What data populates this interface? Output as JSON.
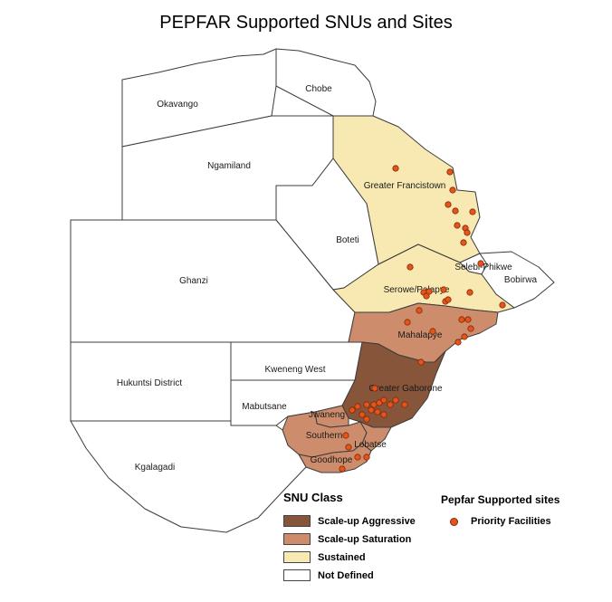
{
  "title": "PEPFAR Supported SNUs and Sites",
  "colors": {
    "scale_up_aggressive": "#86553a",
    "scale_up_saturation": "#cd8d6c",
    "sustained": "#f8e9b2",
    "not_defined": "#ffffff"
  },
  "regions": {
    "okavango": "Okavango",
    "chobe": "Chobe",
    "ngamiland": "Ngamiland",
    "greater_francistown": "Greater Francistown",
    "boteti": "Boteti",
    "ghanzi": "Ghanzi",
    "selebi_phikwe": "Selebi-Phikwe",
    "bobirwa": "Bobirwa",
    "serowe_palapye": "Serowe/Palapye",
    "mahalapye": "Mahalapye",
    "greater_gaborone": "Greater Gaborone",
    "kweneng_west": "Kweneng West",
    "hukuntsi": "Hukuntsi District",
    "mabutsane": "Mabutsane",
    "jwaneng": "Jwaneng",
    "southern": "Southern",
    "lobatse": "Lobatse",
    "goodhope": "Goodhope",
    "kgalagadi": "Kgalagadi"
  },
  "legend": {
    "snu_title": "SNU Class",
    "items": [
      {
        "label": "Scale-up Aggressive",
        "color_key": "scale_up_aggressive"
      },
      {
        "label": "Scale-up Saturation",
        "color_key": "scale_up_saturation"
      },
      {
        "label": "Sustained",
        "color_key": "sustained"
      },
      {
        "label": "Not Defined",
        "color_key": "not_defined"
      }
    ],
    "sites_title": "Pepfar Supported sites",
    "sites_item": "Priority Facilities"
  }
}
